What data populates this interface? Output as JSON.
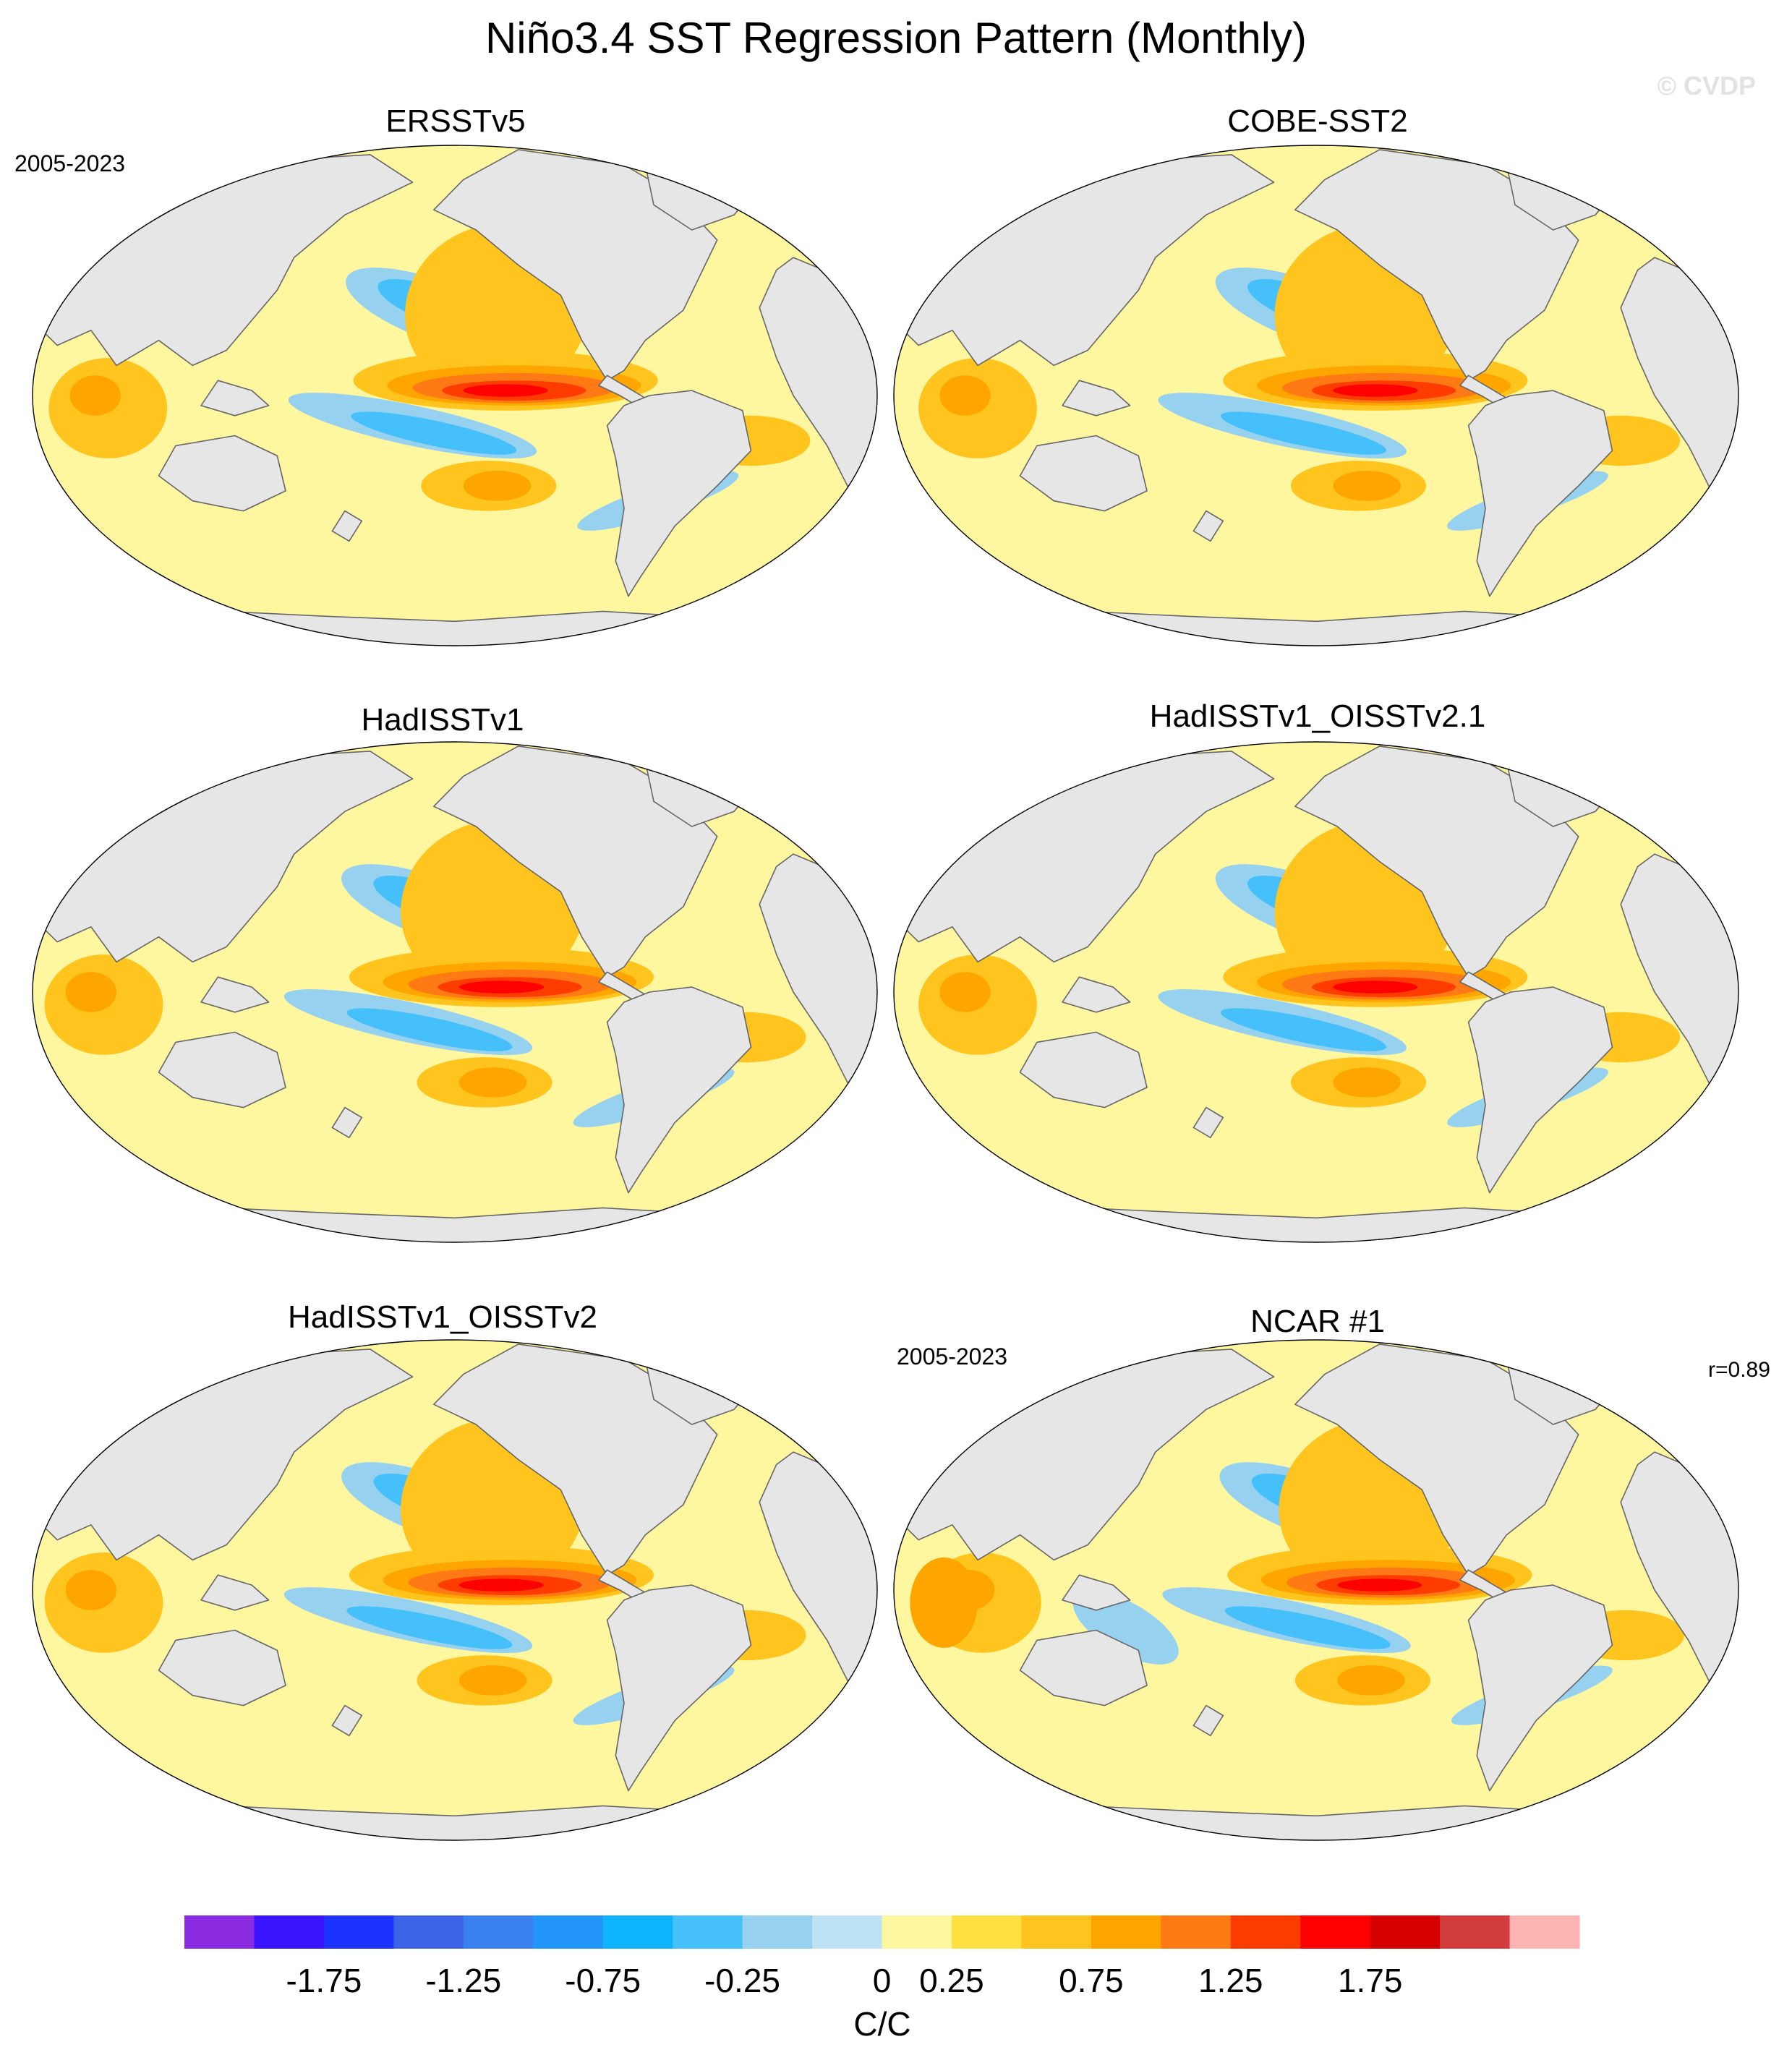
{
  "figure": {
    "title": "Niño3.4 SST Regression Pattern (Monthly)",
    "watermark": "© CVDP",
    "colors": {
      "land": "#e6e6e6",
      "coast": "#666666",
      "ocean_base": "#fff7a0"
    }
  },
  "panels": [
    {
      "title": "ERSSTv5",
      "period": "2005-2023",
      "correlation": ""
    },
    {
      "title": "COBE-SST2",
      "period": "",
      "correlation": ""
    },
    {
      "title": "HadISSTv1",
      "period": "",
      "correlation": ""
    },
    {
      "title": "HadISSTv1_OISSTv2.1",
      "period": "",
      "correlation": ""
    },
    {
      "title": "HadISSTv1_OISSTv2",
      "period": "",
      "correlation": ""
    },
    {
      "title": "NCAR #1",
      "period": "2005-2023",
      "correlation": "r=0.89"
    }
  ],
  "colorbar": {
    "units": "C/C",
    "tick_labels": [
      "-1.75",
      "-1.25",
      "-0.75",
      "-0.25",
      "0",
      "0.25",
      "0.75",
      "1.25",
      "1.75"
    ],
    "colors": [
      "#8a2be2",
      "#3a14ff",
      "#1e32ff",
      "#3c64e6",
      "#3a80ee",
      "#2196f8",
      "#0fb4ff",
      "#45c0fa",
      "#96d2f0",
      "#bde2f4",
      "#fff7a0",
      "#ffe040",
      "#ffc41e",
      "#ffa500",
      "#ff7a14",
      "#ff3c00",
      "#ff0000",
      "#d60000",
      "#d23c3c",
      "#ffb4b4"
    ]
  }
}
